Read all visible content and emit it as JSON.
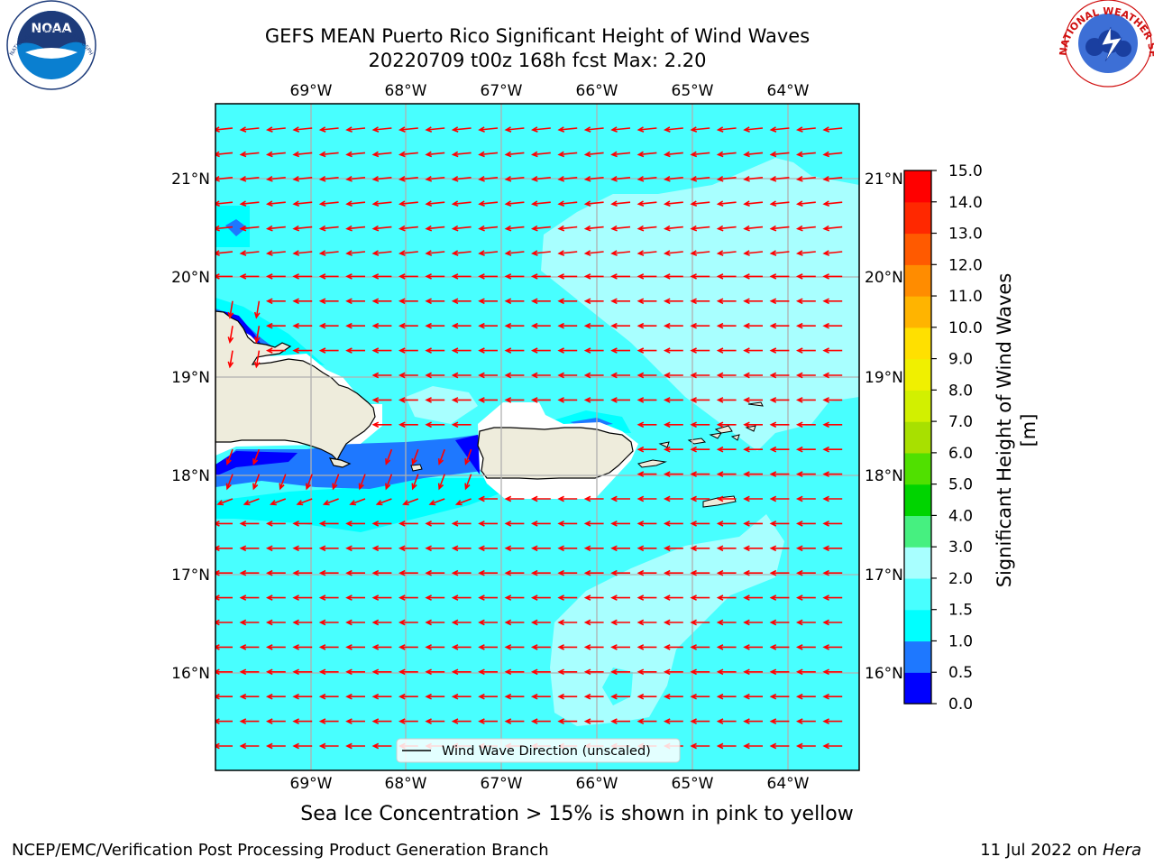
{
  "title": {
    "line1": "GEFS MEAN Puerto Rico Significant Height of Wind Waves",
    "line2": "20220709 t00z 168h fcst   Max: 2.20"
  },
  "map": {
    "lon_ticks": [
      "69°W",
      "68°W",
      "67°W",
      "66°W",
      "65°W",
      "64°W"
    ],
    "lat_ticks": [
      "21°N",
      "20°N",
      "19°N",
      "18°N",
      "17°N",
      "16°N"
    ],
    "lon_range": [
      -70.0,
      -63.25
    ],
    "lat_range": [
      15.0,
      21.75
    ],
    "legend_label": "Wind Wave Direction (unscaled)",
    "arrow_color": "#ff0000",
    "land_color": "#eeecdc",
    "dominant_wave_direction": "toward west (easterly trade-wind waves)"
  },
  "colorbar": {
    "label": "Significant Height of Wind Waves [m]",
    "ticks": [
      "0.0",
      "0.5",
      "1.0",
      "1.5",
      "2.0",
      "3.0",
      "4.0",
      "5.0",
      "6.0",
      "7.0",
      "8.0",
      "9.0",
      "10.0",
      "11.0",
      "12.0",
      "13.0",
      "14.0",
      "15.0"
    ],
    "colors": [
      "#0000ff",
      "#1e78ff",
      "#00ffff",
      "#48ffff",
      "#a8ffff",
      "#46f080",
      "#00d400",
      "#50e000",
      "#a8e000",
      "#d2f000",
      "#f0f000",
      "#ffe000",
      "#ffb400",
      "#ff8c00",
      "#ff5a00",
      "#ff2800",
      "#ff0000"
    ]
  },
  "chart_data": {
    "type": "heatmap",
    "title": "GEFS MEAN Puerto Rico Significant Height of Wind Waves",
    "subtitle": "20220709 t00z 168h fcst   Max: 2.20",
    "variable": "Significant Height of Wind Waves [m]",
    "max_value": 2.2,
    "value_levels": [
      0.0,
      0.5,
      1.0,
      1.5,
      2.0,
      3.0,
      4.0,
      5.0,
      6.0,
      7.0,
      8.0,
      9.0,
      10.0,
      11.0,
      12.0,
      13.0,
      14.0,
      15.0
    ],
    "lon_extent": [
      -70.0,
      -63.25
    ],
    "lat_extent": [
      15.0,
      21.75
    ]
  },
  "notes": {
    "sea_ice": "Sea Ice Concentration > 15% is shown in pink to yellow",
    "footer_left": "NCEP/EMC/Verification Post Processing Product Generation Branch",
    "footer_date": "11 Jul 2022 on ",
    "footer_host": "Hera"
  },
  "logos": {
    "left": "NOAA",
    "left_ring": "NATIONAL OCEANIC AND ATMOSPHERIC ADMINISTRATION · U.S. DEPARTMENT OF COMMERCE",
    "right_ring": "NATIONAL WEATHER SERVICE"
  }
}
